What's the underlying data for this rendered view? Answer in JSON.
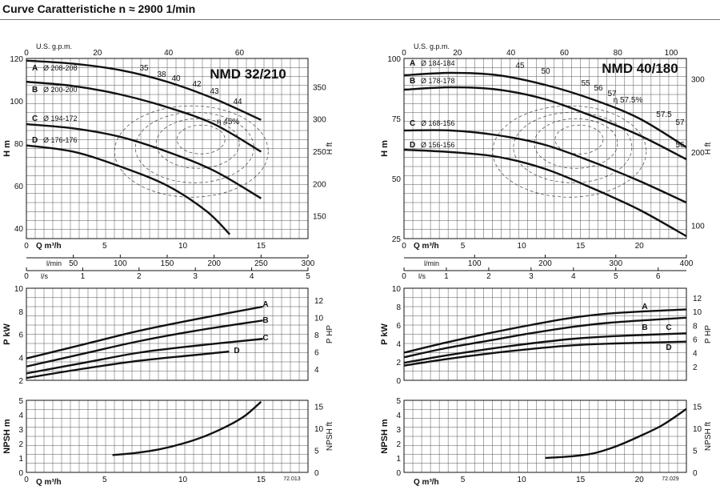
{
  "page": {
    "title": "Curve Caratteristiche n ≈ 2900 1/min"
  },
  "chart_data": [
    {
      "type": "line",
      "title": "NMD 32/210",
      "id": "nmd32",
      "head": {
        "x_unit": "Q m³/h",
        "ylabel": "H m",
        "ylabel_right": "H ft",
        "xlim": [
          0,
          18
        ],
        "ylim": [
          35,
          120
        ],
        "x_ticks": [
          0,
          5,
          10,
          15
        ],
        "y_ticks": [
          40,
          60,
          80,
          100,
          120
        ],
        "right_ticks": [
          150,
          200,
          250,
          300,
          350
        ],
        "right_factor": 3.2808,
        "top_axis": {
          "label": "U.S. g.p.m.",
          "factor": 0.2271,
          "ticks": [
            0,
            20,
            40,
            60
          ]
        },
        "lmin_axis": {
          "label": "l/min",
          "factor": 0.06,
          "ticks": [
            50,
            100,
            150,
            200,
            250,
            300
          ]
        },
        "ls_axis": {
          "label": "l/s",
          "factor": 3.6,
          "ticks": [
            0,
            1,
            2,
            3,
            4,
            5
          ]
        },
        "series": [
          {
            "name": "A",
            "label": "Ø 208-208",
            "points": [
              [
                0,
                119
              ],
              [
                3,
                117.5
              ],
              [
                6,
                114.5
              ],
              [
                9,
                109
              ],
              [
                12,
                101
              ],
              [
                15,
                91
              ]
            ]
          },
          {
            "name": "B",
            "label": "Ø 200-200",
            "points": [
              [
                0,
                109
              ],
              [
                3,
                107
              ],
              [
                6,
                103
              ],
              [
                9,
                97
              ],
              [
                12,
                89
              ],
              [
                15,
                76
              ]
            ]
          },
          {
            "name": "C",
            "label": "Ø 194-172",
            "points": [
              [
                0,
                89
              ],
              [
                3,
                87
              ],
              [
                6,
                83
              ],
              [
                9,
                76
              ],
              [
                12,
                67
              ],
              [
                15,
                54
              ]
            ]
          },
          {
            "name": "D",
            "label": "Ø 176-176",
            "points": [
              [
                0,
                79
              ],
              [
                3,
                76
              ],
              [
                6,
                69
              ],
              [
                9,
                60
              ],
              [
                11.5,
                48
              ],
              [
                13,
                37
              ]
            ]
          }
        ],
        "efficiency_labels": [
          "35",
          "38",
          "40",
          "42",
          "43",
          "44",
          "η 45%"
        ]
      },
      "power": {
        "ylabel": "P kW",
        "ylabel_right": "P HP",
        "ylim": [
          2,
          10
        ],
        "y_ticks": [
          2,
          4,
          6,
          8,
          10
        ],
        "right_ticks": [
          4,
          6,
          8,
          10,
          12
        ],
        "right_factor": 1.341,
        "x_ticks": [
          0,
          1,
          2,
          3,
          4,
          5
        ],
        "series": [
          {
            "name": "A",
            "points": [
              [
                0,
                3.9
              ],
              [
                1,
                5.1
              ],
              [
                2,
                6.3
              ],
              [
                3,
                7.3
              ],
              [
                4.2,
                8.4
              ]
            ]
          },
          {
            "name": "B",
            "points": [
              [
                0,
                3.2
              ],
              [
                1,
                4.3
              ],
              [
                2,
                5.4
              ],
              [
                3,
                6.3
              ],
              [
                4.2,
                7.2
              ]
            ]
          },
          {
            "name": "C",
            "points": [
              [
                0,
                2.6
              ],
              [
                1,
                3.5
              ],
              [
                2,
                4.4
              ],
              [
                3,
                5.0
              ],
              [
                4.2,
                5.6
              ]
            ]
          },
          {
            "name": "D",
            "points": [
              [
                0,
                2.2
              ],
              [
                1,
                3.0
              ],
              [
                2,
                3.7
              ],
              [
                3,
                4.2
              ],
              [
                3.6,
                4.5
              ]
            ]
          }
        ]
      },
      "npsh": {
        "ylabel": "NPSH m",
        "ylabel_right": "NPSH ft",
        "ylim": [
          0,
          5
        ],
        "y_ticks": [
          0,
          1,
          2,
          3,
          4,
          5
        ],
        "right_ticks": [
          0,
          5,
          10,
          15
        ],
        "right_factor": 3.2808,
        "x_ticks": [
          0,
          5,
          10,
          15
        ],
        "x_unit": "Q m³/h",
        "series": [
          {
            "name": "NPSH",
            "points": [
              [
                5.5,
                1.2
              ],
              [
                7,
                1.35
              ],
              [
                8.5,
                1.6
              ],
              [
                10,
                2.0
              ],
              [
                11.5,
                2.55
              ],
              [
                13,
                3.3
              ],
              [
                14,
                3.95
              ],
              [
                15,
                4.9
              ]
            ]
          }
        ],
        "code": "72.013"
      }
    },
    {
      "type": "line",
      "title": "NMD 40/180",
      "id": "nmd40",
      "head": {
        "x_unit": "Q m³/h",
        "ylabel": "H m",
        "ylabel_right": "H ft",
        "xlim": [
          0,
          24
        ],
        "ylim": [
          25,
          100
        ],
        "x_ticks": [
          0,
          5,
          10,
          15,
          20
        ],
        "y_ticks": [
          25,
          50,
          75,
          100
        ],
        "right_ticks": [
          100,
          200,
          300
        ],
        "right_factor": 3.2808,
        "top_axis": {
          "label": "U.S. g.p.m.",
          "factor": 0.2271,
          "ticks": [
            0,
            20,
            40,
            60,
            80,
            100
          ]
        },
        "lmin_axis": {
          "label": "l/min",
          "factor": 0.06,
          "ticks": [
            100,
            200,
            300,
            400
          ]
        },
        "ls_axis": {
          "label": "l/s",
          "factor": 3.6,
          "ticks": [
            0,
            1,
            2,
            3,
            4,
            5,
            6
          ]
        },
        "series": [
          {
            "name": "A",
            "label": "Ø 184-184",
            "points": [
              [
                0,
                93
              ],
              [
                4,
                94
              ],
              [
                8,
                93
              ],
              [
                12,
                89
              ],
              [
                16,
                83
              ],
              [
                20,
                75
              ],
              [
                24,
                63
              ]
            ]
          },
          {
            "name": "B",
            "label": "Ø 178-178",
            "points": [
              [
                0,
                87
              ],
              [
                4,
                88
              ],
              [
                8,
                87
              ],
              [
                12,
                83
              ],
              [
                16,
                76
              ],
              [
                20,
                68
              ],
              [
                24,
                58
              ]
            ]
          },
          {
            "name": "C",
            "label": "Ø 168-156",
            "points": [
              [
                0,
                70
              ],
              [
                4,
                70
              ],
              [
                8,
                68
              ],
              [
                12,
                64
              ],
              [
                16,
                57
              ],
              [
                20,
                49
              ],
              [
                24,
                40
              ]
            ]
          },
          {
            "name": "D",
            "label": "Ø 156-156",
            "points": [
              [
                0,
                62
              ],
              [
                4,
                61
              ],
              [
                8,
                59
              ],
              [
                12,
                54
              ],
              [
                16,
                46
              ],
              [
                20,
                37
              ],
              [
                24,
                26
              ]
            ]
          }
        ],
        "efficiency_labels": [
          "45",
          "50",
          "55",
          "56",
          "57",
          "η 57.5%",
          "57.5",
          "57",
          "56"
        ]
      },
      "power": {
        "ylabel": "P kW",
        "ylabel_right": "P HP",
        "ylim": [
          0,
          10
        ],
        "y_ticks": [
          0,
          2,
          4,
          6,
          8,
          10
        ],
        "right_ticks": [
          2,
          4,
          6,
          8,
          10,
          12
        ],
        "right_factor": 1.341,
        "x_ticks": [
          0,
          1,
          2,
          3,
          4,
          5,
          6
        ],
        "series": [
          {
            "name": "A",
            "points": [
              [
                0,
                3.0
              ],
              [
                1,
                4.1
              ],
              [
                2,
                5.1
              ],
              [
                3,
                6.0
              ],
              [
                4,
                6.8
              ],
              [
                5,
                7.3
              ],
              [
                6.7,
                7.7
              ]
            ]
          },
          {
            "name": "B",
            "points": [
              [
                0,
                2.5
              ],
              [
                1,
                3.5
              ],
              [
                2,
                4.3
              ],
              [
                3,
                5.1
              ],
              [
                4,
                5.8
              ],
              [
                5,
                6.3
              ],
              [
                6.7,
                6.8
              ]
            ]
          },
          {
            "name": "C",
            "points": [
              [
                0,
                1.9
              ],
              [
                1,
                2.7
              ],
              [
                2,
                3.4
              ],
              [
                3,
                4.0
              ],
              [
                4,
                4.5
              ],
              [
                5,
                4.8
              ],
              [
                6.7,
                5.1
              ]
            ]
          },
          {
            "name": "D",
            "points": [
              [
                0,
                1.6
              ],
              [
                1,
                2.3
              ],
              [
                2,
                2.9
              ],
              [
                3,
                3.4
              ],
              [
                4,
                3.8
              ],
              [
                5,
                4.0
              ],
              [
                6.7,
                4.2
              ]
            ]
          }
        ]
      },
      "npsh": {
        "ylabel": "NPSH m",
        "ylabel_right": "NPSH ft",
        "ylim": [
          0,
          5
        ],
        "y_ticks": [
          0,
          1,
          2,
          3,
          4,
          5
        ],
        "right_ticks": [
          0,
          5,
          10,
          15
        ],
        "right_factor": 3.2808,
        "x_ticks": [
          5,
          10,
          15,
          20
        ],
        "x_unit": "Q m³/h",
        "series": [
          {
            "name": "NPSH",
            "points": [
              [
                12,
                1.0
              ],
              [
                14,
                1.1
              ],
              [
                16,
                1.3
              ],
              [
                18,
                1.8
              ],
              [
                20,
                2.5
              ],
              [
                22,
                3.3
              ],
              [
                24,
                4.4
              ]
            ]
          }
        ],
        "code": "72.029"
      }
    }
  ]
}
